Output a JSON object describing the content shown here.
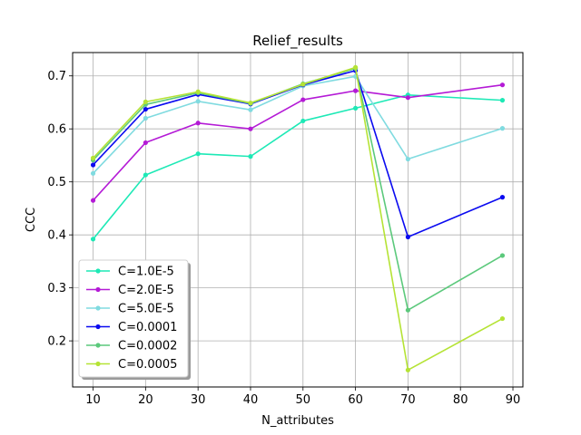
{
  "chart_data": {
    "type": "line",
    "title": "Relief_results",
    "xlabel": "N_attributes",
    "ylabel": "CCC",
    "xlim": [
      6.1,
      91.9
    ],
    "ylim": [
      0.113,
      0.744
    ],
    "xticks": [
      10,
      20,
      30,
      40,
      50,
      60,
      70,
      80,
      90
    ],
    "yticks": [
      0.2,
      0.3,
      0.4,
      0.5,
      0.6,
      0.7
    ],
    "grid": true,
    "legend_position": "lower-left",
    "x": [
      10,
      20,
      30,
      40,
      50,
      60,
      70,
      88
    ],
    "series": [
      {
        "name": "C=1.0E-5",
        "color": "#1de9b6",
        "values": [
          0.392,
          0.513,
          0.553,
          0.548,
          0.615,
          0.639,
          0.664,
          0.654
        ]
      },
      {
        "name": "C=2.0E-5",
        "color": "#b41ad6",
        "values": [
          0.465,
          0.574,
          0.611,
          0.6,
          0.655,
          0.672,
          0.659,
          0.683
        ]
      },
      {
        "name": "C=5.0E-5",
        "color": "#80dbe0",
        "values": [
          0.516,
          0.62,
          0.652,
          0.636,
          0.681,
          0.699,
          0.543,
          0.601
        ]
      },
      {
        "name": "C=0.0001",
        "color": "#0a0af0",
        "values": [
          0.532,
          0.637,
          0.665,
          0.647,
          0.683,
          0.71,
          0.396,
          0.471
        ]
      },
      {
        "name": "C=0.0002",
        "color": "#5cc97c",
        "values": [
          0.541,
          0.646,
          0.668,
          0.648,
          0.685,
          0.714,
          0.258,
          0.361
        ]
      },
      {
        "name": "C=0.0005",
        "color": "#b5e335",
        "values": [
          0.545,
          0.651,
          0.67,
          0.649,
          0.684,
          0.716,
          0.145,
          0.242
        ]
      }
    ]
  }
}
